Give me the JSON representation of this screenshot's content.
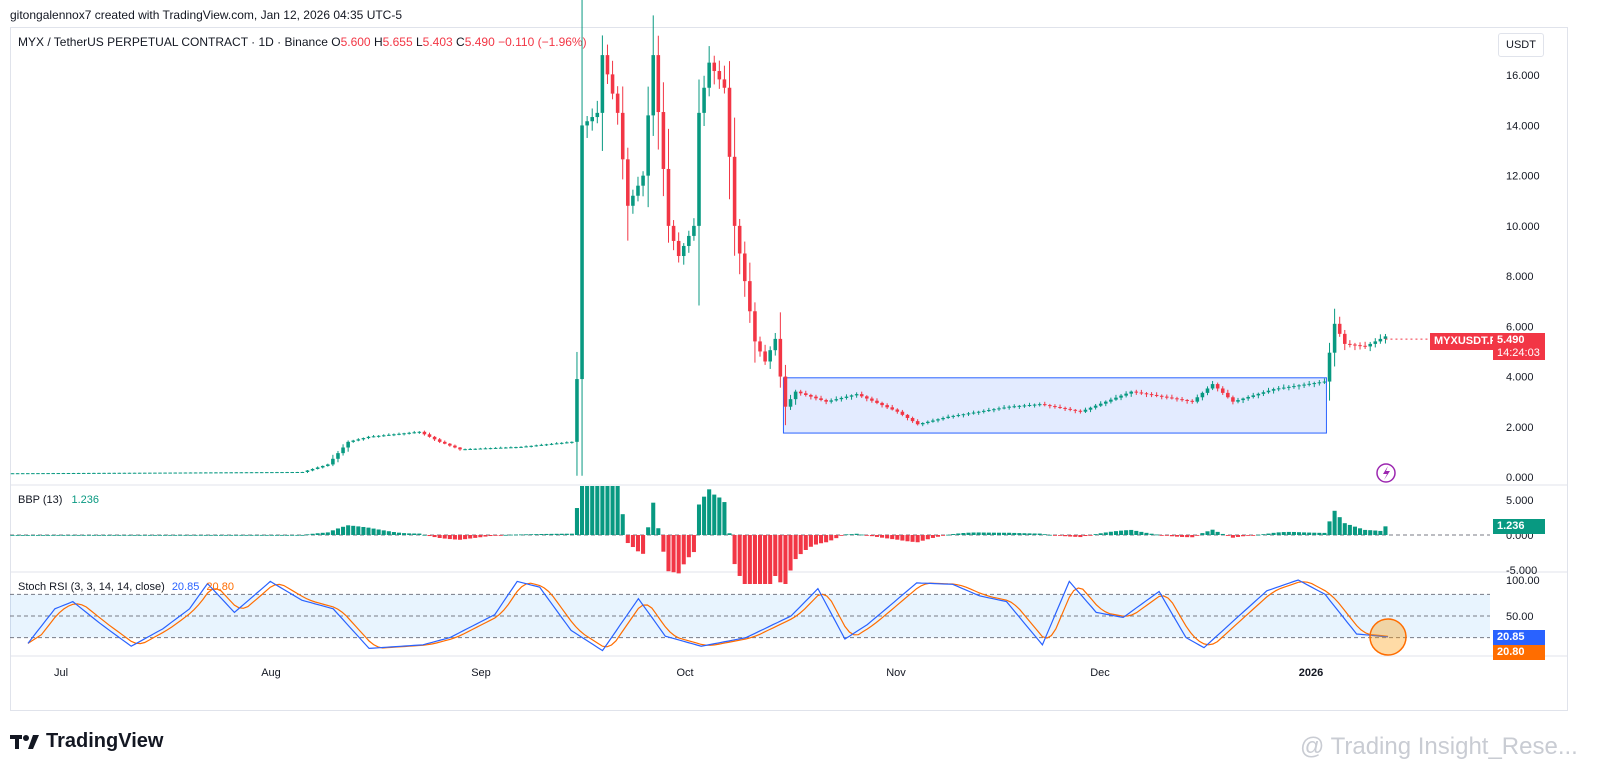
{
  "header": {
    "credit": "gitongalennox7 created with TradingView.com, Jan 12, 2026 04:35 UTC-5"
  },
  "symbol": {
    "title": "MYX / TetherUS PERPETUAL CONTRACT · 1D · Binance",
    "o_label": "O",
    "o": "5.600",
    "h_label": "H",
    "h": "5.655",
    "l_label": "L",
    "l": "5.403",
    "c_label": "C",
    "c": "5.490",
    "change": "−0.110 (−1.96%)"
  },
  "currency_button": "USDT",
  "price_badge": {
    "ticker": "MYXUSDT.P",
    "price": "5.490",
    "countdown": "14:24:03"
  },
  "bbp": {
    "label": "BBP (13)",
    "value": "1.236"
  },
  "stoch": {
    "label": "Stoch RSI (3, 3, 14, 14, close)",
    "k": "20.85",
    "d": "20.80"
  },
  "footer": {
    "logo": "TradingView",
    "watermark": "@ Trading Insight_Rese..."
  },
  "colors": {
    "up": "#089981",
    "down": "#f23645",
    "k_line": "#2962ff",
    "d_line": "#ff6d00",
    "box": "#2962ff"
  },
  "chart_data": [
    {
      "type": "candlestick",
      "y_ticks": [
        "16.000",
        "14.000",
        "12.000",
        "10.000",
        "8.000",
        "6.000",
        "4.000",
        "2.000",
        "0.000"
      ],
      "ylim": [
        0,
        17.8
      ],
      "x_ticks": [
        "Jul",
        "Aug",
        "Sep",
        "Oct",
        "Nov",
        "Dec",
        "2026"
      ],
      "annotation": {
        "type": "consolidation-range",
        "price_from": 1.75,
        "price_to": 3.95
      },
      "anchors": [
        [
          0,
          0.15
        ],
        [
          25,
          0.17
        ],
        [
          57,
          0.2
        ],
        [
          62,
          0.5
        ],
        [
          66,
          1.4
        ],
        [
          70,
          1.6
        ],
        [
          80,
          1.8
        ],
        [
          84,
          1.4
        ],
        [
          88,
          1.1
        ],
        [
          100,
          1.2
        ],
        [
          110,
          1.4
        ],
        [
          111,
          3.9
        ],
        [
          112,
          14.0
        ],
        [
          115,
          14.5
        ],
        [
          116,
          16.8
        ],
        [
          119,
          14.5
        ],
        [
          121,
          10.8
        ],
        [
          124,
          12.0
        ],
        [
          126,
          16.8
        ],
        [
          129,
          10.0
        ],
        [
          131,
          8.8
        ],
        [
          134,
          10.0
        ],
        [
          135,
          14.5
        ],
        [
          137,
          16.5
        ],
        [
          140,
          15.5
        ],
        [
          142,
          10.0
        ],
        [
          144,
          7.8
        ],
        [
          146,
          5.4
        ],
        [
          148,
          4.6
        ],
        [
          150,
          5.5
        ],
        [
          151,
          4.0
        ],
        [
          152,
          2.8
        ],
        [
          154,
          3.4
        ],
        [
          160,
          3.0
        ],
        [
          166,
          3.3
        ],
        [
          174,
          2.6
        ],
        [
          178,
          2.1
        ],
        [
          184,
          2.4
        ],
        [
          196,
          2.8
        ],
        [
          202,
          2.9
        ],
        [
          210,
          2.6
        ],
        [
          220,
          3.4
        ],
        [
          232,
          3.0
        ],
        [
          236,
          3.7
        ],
        [
          240,
          3.0
        ],
        [
          248,
          3.5
        ],
        [
          258,
          3.8
        ],
        [
          260,
          6.1
        ],
        [
          262,
          5.3
        ],
        [
          266,
          5.2
        ],
        [
          270,
          5.6
        ]
      ]
    },
    {
      "type": "bar",
      "name": "BBP (13)",
      "y_ticks": [
        "5.000",
        "0.000",
        "-5.000"
      ],
      "last": 1.236
    },
    {
      "type": "line",
      "name": "Stoch RSI",
      "y_ticks": [
        "100.00",
        "50.00"
      ],
      "bands": [
        80,
        50,
        20
      ],
      "last": {
        "k": 20.85,
        "d": 20.8
      },
      "k_anchors": [
        [
          4,
          12
        ],
        [
          10,
          60
        ],
        [
          14,
          70
        ],
        [
          20,
          40
        ],
        [
          27,
          8
        ],
        [
          34,
          32
        ],
        [
          40,
          60
        ],
        [
          44,
          95
        ],
        [
          50,
          55
        ],
        [
          58,
          98
        ],
        [
          65,
          72
        ],
        [
          72,
          60
        ],
        [
          80,
          5
        ],
        [
          92,
          10
        ],
        [
          98,
          20
        ],
        [
          108,
          52
        ],
        [
          113,
          98
        ],
        [
          118,
          90
        ],
        [
          125,
          30
        ],
        [
          132,
          2
        ],
        [
          140,
          74
        ],
        [
          146,
          22
        ],
        [
          154,
          8
        ],
        [
          164,
          20
        ],
        [
          174,
          50
        ],
        [
          180,
          88
        ],
        [
          186,
          18
        ],
        [
          191,
          38
        ],
        [
          202,
          96
        ],
        [
          210,
          94
        ],
        [
          216,
          78
        ],
        [
          222,
          70
        ],
        [
          230,
          10
        ],
        [
          236,
          98
        ],
        [
          242,
          55
        ],
        [
          248,
          48
        ],
        [
          256,
          84
        ],
        [
          262,
          20
        ],
        [
          266,
          6
        ],
        [
          272,
          40
        ],
        [
          280,
          85
        ],
        [
          287,
          100
        ],
        [
          293,
          80
        ],
        [
          300,
          25
        ],
        [
          307,
          21
        ]
      ]
    }
  ]
}
